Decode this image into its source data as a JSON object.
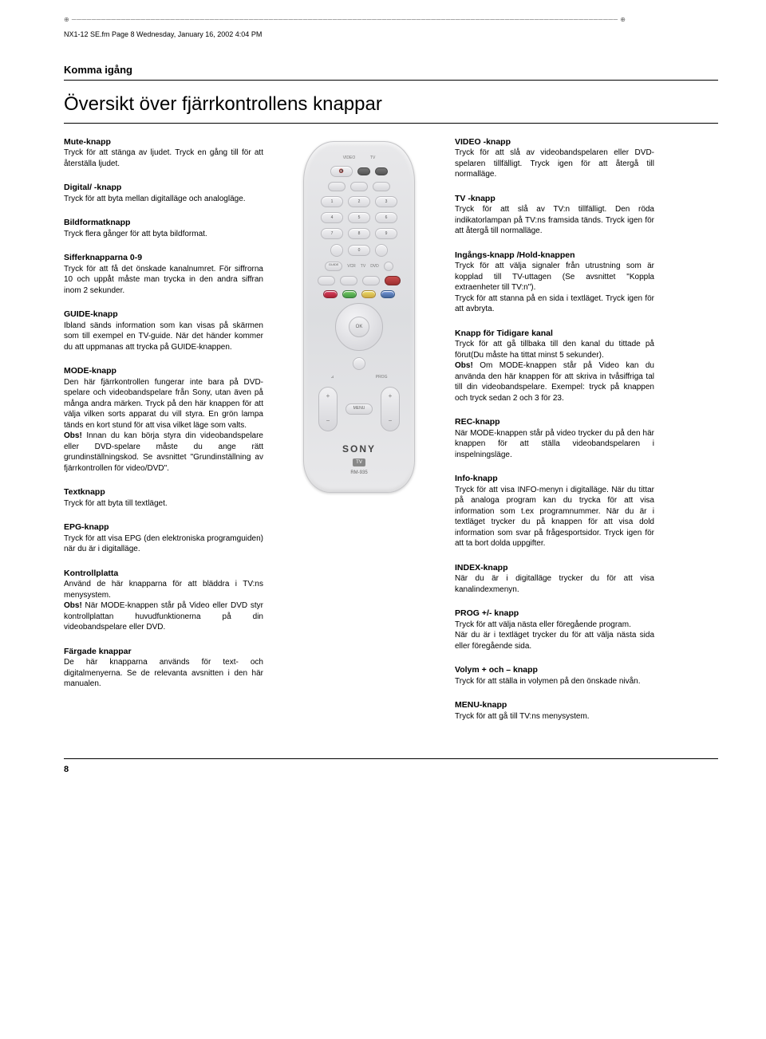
{
  "header_line": "NX1-12 SE.fm  Page 8  Wednesday, January 16, 2002  4:04 PM",
  "section_header": "Komma igång",
  "page_title": "Översikt över fjärrkontrollens knappar",
  "page_number": "8",
  "remote": {
    "video_label": "VIDEO",
    "tv_label": "TV",
    "guide_label": "GUIDE",
    "vcr_label": "VCR",
    "tv_small": "TV",
    "dvd_label": "DVD",
    "ok_label": "OK",
    "prog_label": "PROG",
    "menu_label": "MENU",
    "brand": "SONY",
    "tv_badge": "TV",
    "model": "RM-935"
  },
  "left": [
    {
      "title": "Mute-knapp ",
      "body": "Tryck för att stänga av ljudet. Tryck en gång till för att återställa ljudet."
    },
    {
      "title": "Digital/ -knapp",
      "body": "Tryck för att byta mellan digitalläge och analogläge."
    },
    {
      "title": "Bildformatknapp ",
      "body": "Tryck flera gånger för att byta bildformat."
    },
    {
      "title": "Sifferknapparna 0-9",
      "body": "Tryck för att få det önskade kanalnumret. För siffrorna 10 och uppåt måste man trycka in den andra siffran inom 2 sekunder."
    },
    {
      "title": "GUIDE-knapp",
      "body": "Ibland sänds information som kan visas på skärmen som till exempel en TV-guide. När det händer kommer du att uppmanas att trycka på GUIDE-knappen."
    },
    {
      "title": "MODE-knapp",
      "body": "Den här fjärrkontrollen fungerar inte bara på DVD-spelare och videobandspelare från Sony, utan även på många andra märken. Tryck på den här knappen för att välja vilken sorts apparat du vill styra. En grön lampa tänds en kort stund för att visa vilket läge som valts.",
      "obs": "Obs!",
      "obs_body": " Innan du kan börja styra din videobandspelare eller DVD-spelare måste du ange rätt grundinställningskod. Se avsnittet \"Grundinställning av fjärrkontrollen för video/DVD\"."
    },
    {
      "title": "Textknapp ",
      "body": "Tryck för att byta till textläget."
    },
    {
      "title": "EPG-knapp ",
      "body": "Tryck för att visa EPG (den elektroniska programguiden) när du är i digitalläge."
    },
    {
      "title": "Kontrollplatta ",
      "body": "Använd de här knapparna för att bläddra i TV:ns menysystem.",
      "obs": "Obs!",
      "obs_body": " När MODE-knappen står på Video eller DVD styr kontrollplattan huvudfunktionerna på din videobandspelare eller DVD."
    },
    {
      "title": "Färgade knappar",
      "body": "De här knapparna används för text- och digitalmenyerna. Se de relevanta avsnitten i den här manualen."
    }
  ],
  "right": [
    {
      "title": "VIDEO  -knapp",
      "body": "Tryck för att slå av videobandspelaren eller DVD-spelaren tillfälligt. Tryck igen för att återgå till normalläge."
    },
    {
      "title": "TV  -knapp",
      "body": "Tryck för att slå av TV:n tillfälligt. Den röda indikatorlampan på TV:ns framsida tänds. Tryck igen för att återgå till normalläge."
    },
    {
      "title": "Ingångs-knapp  /Hold-knappen ",
      "body": "Tryck för att välja signaler från utrustning som är kopplad till TV-uttagen (Se avsnittet \"Koppla extraenheter till TV:n\").\nTryck för att stanna på en sida i textläget. Tryck igen för att avbryta."
    },
    {
      "title": "Knapp för Tidigare kanal ",
      "body": "Tryck för att gå tillbaka till den kanal du tittade på förut(Du måste ha tittat minst 5 sekunder).",
      "obs": "Obs!",
      "obs_body": " Om MODE-knappen står på Video kan du använda den här knappen för att skriva in tvåsiffriga tal till din videobandspelare. Exempel: tryck på knappen och tryck sedan 2 och 3 för 23."
    },
    {
      "title": "REC-knapp",
      "body": "När MODE-knappen står på video trycker du på den här knappen för att ställa videobandspelaren i inspelningsläge."
    },
    {
      "title": "Info-knapp ",
      "body": "Tryck för att visa INFO-menyn i digitalläge. När du tittar på analoga program kan du trycka för att visa information som t.ex programnummer. När du är i textläget trycker du på knappen för att visa dold information som svar på frågesportsidor. Tryck igen för att ta bort dolda uppgifter."
    },
    {
      "title": "INDEX-knapp",
      "body": "När du är i digitalläge trycker du för att visa kanalindexmenyn."
    },
    {
      "title": "PROG +/- knapp",
      "body": "Tryck för att välja nästa eller föregående program.\nNär du är i textläget trycker du för att välja nästa sida eller föregående sida."
    },
    {
      "title": "Volym + och – knapp ",
      "body": "Tryck för att ställa in volymen på den önskade nivån."
    },
    {
      "title": "MENU-knapp",
      "body": "Tryck för att gå till TV:ns menysystem."
    }
  ]
}
